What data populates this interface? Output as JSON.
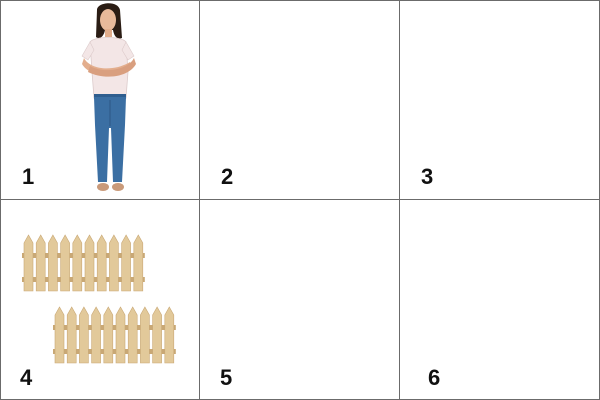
{
  "grid": {
    "cells": [
      {
        "number": "1",
        "content": "woman-image"
      },
      {
        "number": "2",
        "content": "empty"
      },
      {
        "number": "3",
        "content": "empty"
      },
      {
        "number": "4",
        "content": "fence-image"
      },
      {
        "number": "5",
        "content": "empty"
      },
      {
        "number": "6",
        "content": "empty"
      }
    ]
  },
  "colors": {
    "grid_line": "#6b6b6b",
    "fence_wood": "#e2c99a",
    "jeans": "#3b6fa3",
    "blouse": "#f3e6e6"
  }
}
